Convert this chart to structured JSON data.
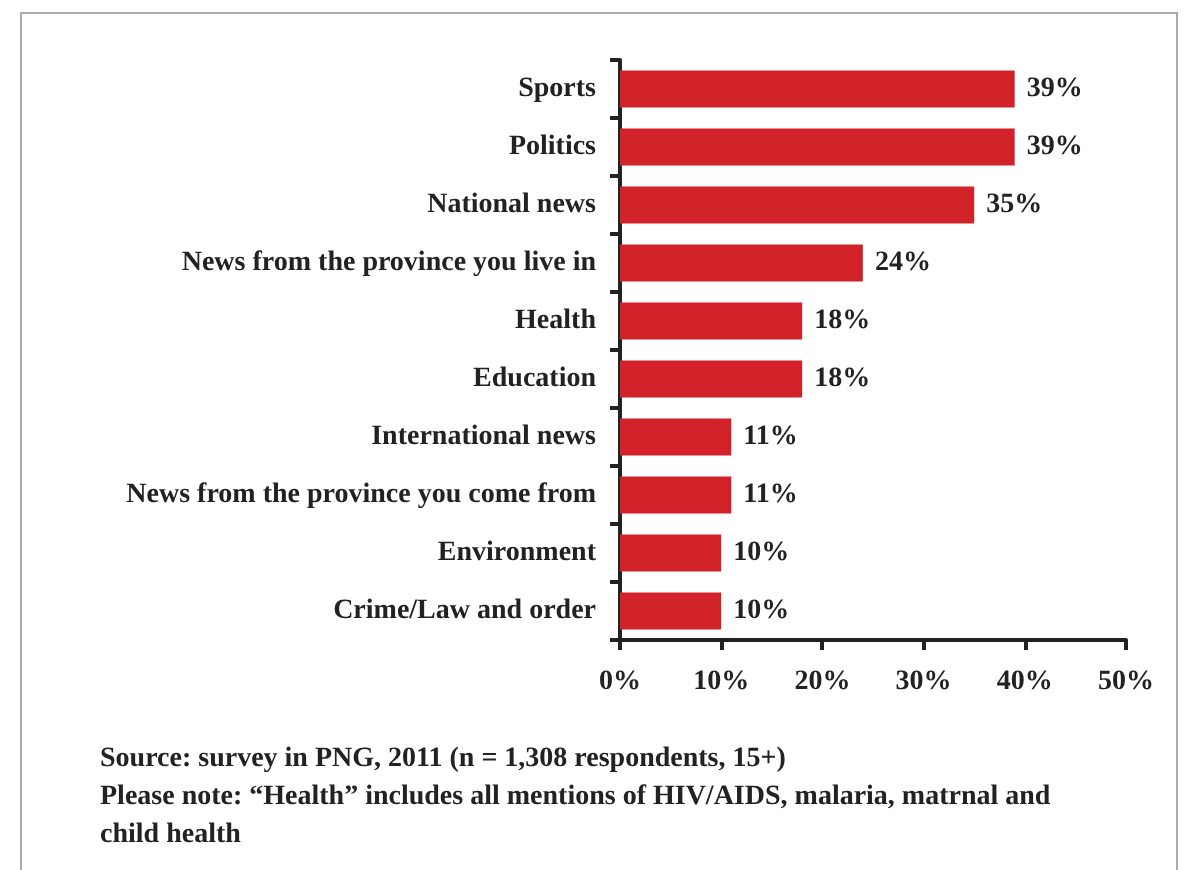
{
  "chart_data": {
    "type": "bar",
    "orientation": "horizontal",
    "categories": [
      "Sports",
      "Politics",
      "National news",
      "News from the province you live in",
      "Health",
      "Education",
      "International news",
      "News from the province you come from",
      "Environment",
      "Crime/Law and order"
    ],
    "values": [
      39,
      39,
      35,
      24,
      18,
      18,
      11,
      11,
      10,
      10
    ],
    "value_labels": [
      "39%",
      "39%",
      "35%",
      "24%",
      "18%",
      "18%",
      "11%",
      "11%",
      "10%",
      "10%"
    ],
    "color": "#d12229",
    "xlim": [
      0,
      50
    ],
    "xticks": [
      {
        "value": 0,
        "label": "0%"
      },
      {
        "value": 10,
        "label": "10%"
      },
      {
        "value": 20,
        "label": "20%"
      },
      {
        "value": 30,
        "label": "30%"
      },
      {
        "value": 40,
        "label": "40%"
      },
      {
        "value": 50,
        "label": "50%"
      }
    ],
    "annotations": [
      "Source: survey in PNG, 2011 (n = 1,308 respondents, 15+)",
      "Please note: “Health” includes all mentions of HIV/AIDS, malaria, matrnal and child health"
    ]
  }
}
